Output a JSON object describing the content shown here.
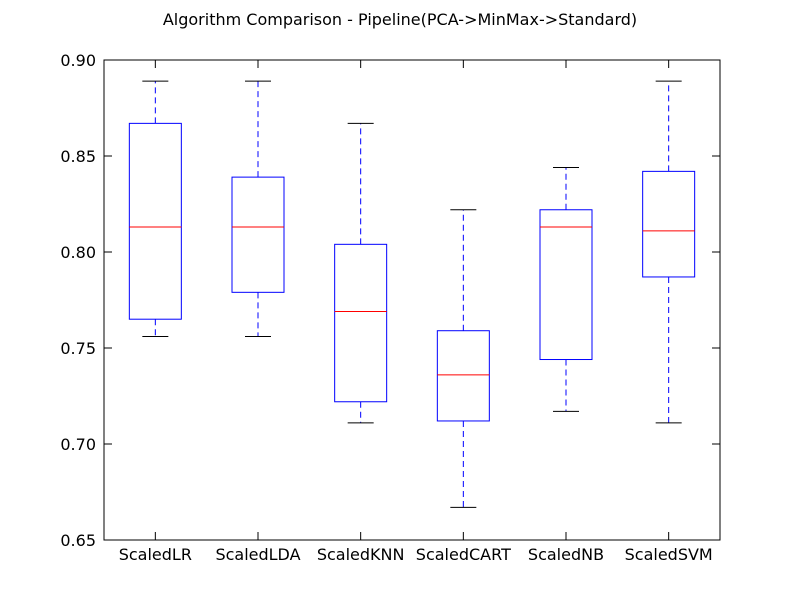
{
  "chart_data": {
    "type": "boxplot",
    "title": "Algorithm Comparison - Pipeline(PCA->MinMax->Standard)",
    "xlabel": "",
    "ylabel": "",
    "ylim": [
      0.65,
      0.9
    ],
    "yticks": [
      "0.65",
      "0.70",
      "0.75",
      "0.80",
      "0.85",
      "0.90"
    ],
    "grid": false,
    "colors": {
      "box": "#0000ff",
      "median": "#ff0000",
      "cap": "#000000",
      "frame": "#000000"
    },
    "categories": [
      "ScaledLR",
      "ScaledLDA",
      "ScaledKNN",
      "ScaledCART",
      "ScaledNB",
      "ScaledSVM"
    ],
    "boxes": [
      {
        "name": "ScaledLR",
        "whisker_low": 0.756,
        "q1": 0.765,
        "median": 0.813,
        "q3": 0.867,
        "whisker_high": 0.889
      },
      {
        "name": "ScaledLDA",
        "whisker_low": 0.756,
        "q1": 0.779,
        "median": 0.813,
        "q3": 0.839,
        "whisker_high": 0.889
      },
      {
        "name": "ScaledKNN",
        "whisker_low": 0.711,
        "q1": 0.722,
        "median": 0.769,
        "q3": 0.804,
        "whisker_high": 0.867
      },
      {
        "name": "ScaledCART",
        "whisker_low": 0.667,
        "q1": 0.712,
        "median": 0.736,
        "q3": 0.759,
        "whisker_high": 0.822
      },
      {
        "name": "ScaledNB",
        "whisker_low": 0.717,
        "q1": 0.744,
        "median": 0.813,
        "q3": 0.822,
        "whisker_high": 0.844
      },
      {
        "name": "ScaledSVM",
        "whisker_low": 0.711,
        "q1": 0.787,
        "median": 0.811,
        "q3": 0.842,
        "whisker_high": 0.889
      }
    ]
  }
}
